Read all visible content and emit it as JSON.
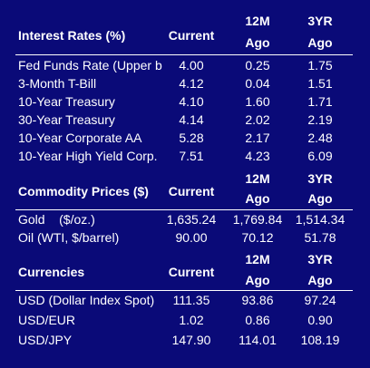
{
  "interest_rates": {
    "title": "Interest Rates (%)",
    "col_current": "Current",
    "col_12m": "12M",
    "col_12m_sub": "Ago",
    "col_3yr": "3YR",
    "col_3yr_sub": "Ago",
    "rows": [
      {
        "label": "Fed Funds Rate (Upper b",
        "current": "4.00",
        "m12": "0.25",
        "y3": "1.75"
      },
      {
        "label": "3-Month T-Bill",
        "current": "4.12",
        "m12": "0.04",
        "y3": "1.51"
      },
      {
        "label": "10-Year Treasury",
        "current": "4.10",
        "m12": "1.60",
        "y3": "1.71"
      },
      {
        "label": "30-Year Treasury",
        "current": "4.14",
        "m12": "2.02",
        "y3": "2.19"
      },
      {
        "label": "10-Year Corporate AA",
        "current": "5.28",
        "m12": "2.17",
        "y3": "2.48"
      },
      {
        "label": "10-Year High Yield Corp.",
        "current": "7.51",
        "m12": "4.23",
        "y3": "6.09"
      }
    ]
  },
  "commodities": {
    "title": "Commodity Prices ($)",
    "col_current": "Current",
    "col_12m": "12M",
    "col_12m_sub": "Ago",
    "col_3yr": "3YR",
    "col_3yr_sub": "Ago",
    "rows": [
      {
        "label": "Gold    ($/oz.)",
        "current": "1,635.24",
        "m12": "1,769.84",
        "y3": "1,514.34"
      },
      {
        "label": "Oil (WTI, $/barrel)",
        "current": "90.00",
        "m12": "70.12",
        "y3": "51.78"
      }
    ]
  },
  "currencies": {
    "title": "Currencies",
    "col_current": "Current",
    "col_12m": "12M",
    "col_12m_sub": "Ago",
    "col_3yr": "3YR",
    "col_3yr_sub": "Ago",
    "rows": [
      {
        "label": "USD (Dollar Index Spot)",
        "current": "111.35",
        "m12": "93.86",
        "y3": "97.24"
      },
      {
        "label": "USD/EUR",
        "current": "1.02",
        "m12": "0.86",
        "y3": "0.90"
      },
      {
        "label": "USD/JPY",
        "current": "147.90",
        "m12": "114.01",
        "y3": "108.19"
      }
    ]
  },
  "colors": {
    "background": "#0a0a78",
    "text": "#ffffff"
  }
}
